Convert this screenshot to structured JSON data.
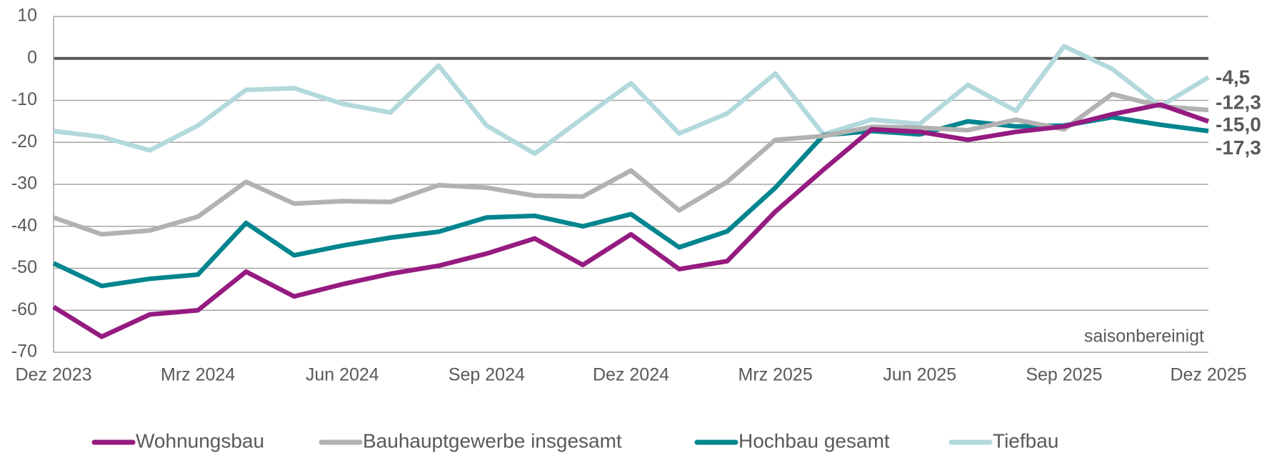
{
  "chart_data": {
    "type": "line",
    "categories": [
      "Dez 2023",
      null,
      null,
      "Mrz 2024",
      null,
      null,
      "Jun 2024",
      null,
      null,
      "Sep 2024",
      null,
      null,
      "Dez 2024",
      null,
      null,
      "Mrz 2025",
      null,
      null,
      "Jun 2025",
      null,
      null,
      "Sep 2025",
      null,
      null,
      "Dez 2025"
    ],
    "series": [
      {
        "name": "Wohnungsbau",
        "color": "#951b81",
        "label_color": "#951b81",
        "values": [
          -59.2,
          -66.3,
          -61,
          -60,
          -50.8,
          -56.7,
          -53.8,
          -51.3,
          -49.4,
          -46.5,
          -42.9,
          -49.2,
          -41.9,
          -50.2,
          -48.3,
          -36.5,
          -26.5,
          -16.9,
          -17.5,
          -19.4,
          -17.5,
          -16.2,
          -13.3,
          -11,
          -15.0
        ],
        "value_labels": [
          null,
          null,
          null,
          null,
          null,
          null,
          null,
          null,
          null,
          null,
          null,
          null,
          null,
          null,
          null,
          null,
          null,
          null,
          null,
          null,
          null,
          null,
          null,
          null,
          "-15,0"
        ]
      },
      {
        "name": "Bauhauptgewerbe insgesamt",
        "color": "#b2b2b2",
        "label_color": "#595959",
        "values": [
          -37.9,
          -41.9,
          -41,
          -37.7,
          -29.4,
          -34.6,
          -34,
          -34.2,
          -30.2,
          -30.8,
          -32.7,
          -32.9,
          -26.7,
          -36.2,
          -29.4,
          -19.4,
          -18.5,
          -16.3,
          -16.5,
          -17.1,
          -14.6,
          -16.9,
          -8.5,
          -11.4,
          -12.3
        ],
        "value_labels": [
          null,
          null,
          null,
          null,
          null,
          null,
          null,
          null,
          null,
          null,
          null,
          null,
          null,
          null,
          null,
          null,
          null,
          null,
          null,
          null,
          null,
          null,
          null,
          null,
          "-12,3"
        ]
      },
      {
        "name": "Hochbau gesamt",
        "color": "#00858f",
        "label_color": "#00858f",
        "values": [
          -48.8,
          -54.2,
          -52.5,
          -51.5,
          -39.2,
          -46.9,
          -44.6,
          -42.7,
          -41.3,
          -37.9,
          -37.5,
          -40,
          -37.1,
          -45,
          -41.2,
          -30.8,
          -18.3,
          -17.3,
          -18.1,
          -15,
          -16.2,
          -16,
          -14,
          -15.8,
          -17.3
        ],
        "value_labels": [
          null,
          null,
          null,
          null,
          null,
          null,
          null,
          null,
          null,
          null,
          null,
          null,
          null,
          null,
          null,
          null,
          null,
          null,
          null,
          null,
          null,
          null,
          null,
          null,
          "-17,3"
        ]
      },
      {
        "name": "Tiefbau",
        "color": "#b3d9dc",
        "label_color": "#b3d9dc",
        "values": [
          -17.3,
          -18.7,
          -21.9,
          -16,
          -7.5,
          -7.1,
          -10.8,
          -12.9,
          -1.7,
          -16,
          -22.7,
          -14.2,
          -5.9,
          -17.9,
          -13.1,
          -3.6,
          -18.1,
          -14.6,
          -15.6,
          -6.3,
          -12.5,
          2.9,
          -2.5,
          -11.4,
          -4.5
        ],
        "value_labels": [
          null,
          null,
          null,
          null,
          null,
          null,
          null,
          null,
          null,
          null,
          null,
          null,
          null,
          null,
          null,
          null,
          null,
          null,
          null,
          null,
          null,
          null,
          null,
          null,
          "-4,5"
        ]
      }
    ],
    "ylim": [
      -70,
      10
    ],
    "yticks": [
      -70,
      -60,
      -50,
      -40,
      -30,
      -20,
      -10,
      0,
      10
    ],
    "grid": true,
    "zero_line": true,
    "legend": "bottom",
    "annotation": "saisonbereinigt"
  }
}
